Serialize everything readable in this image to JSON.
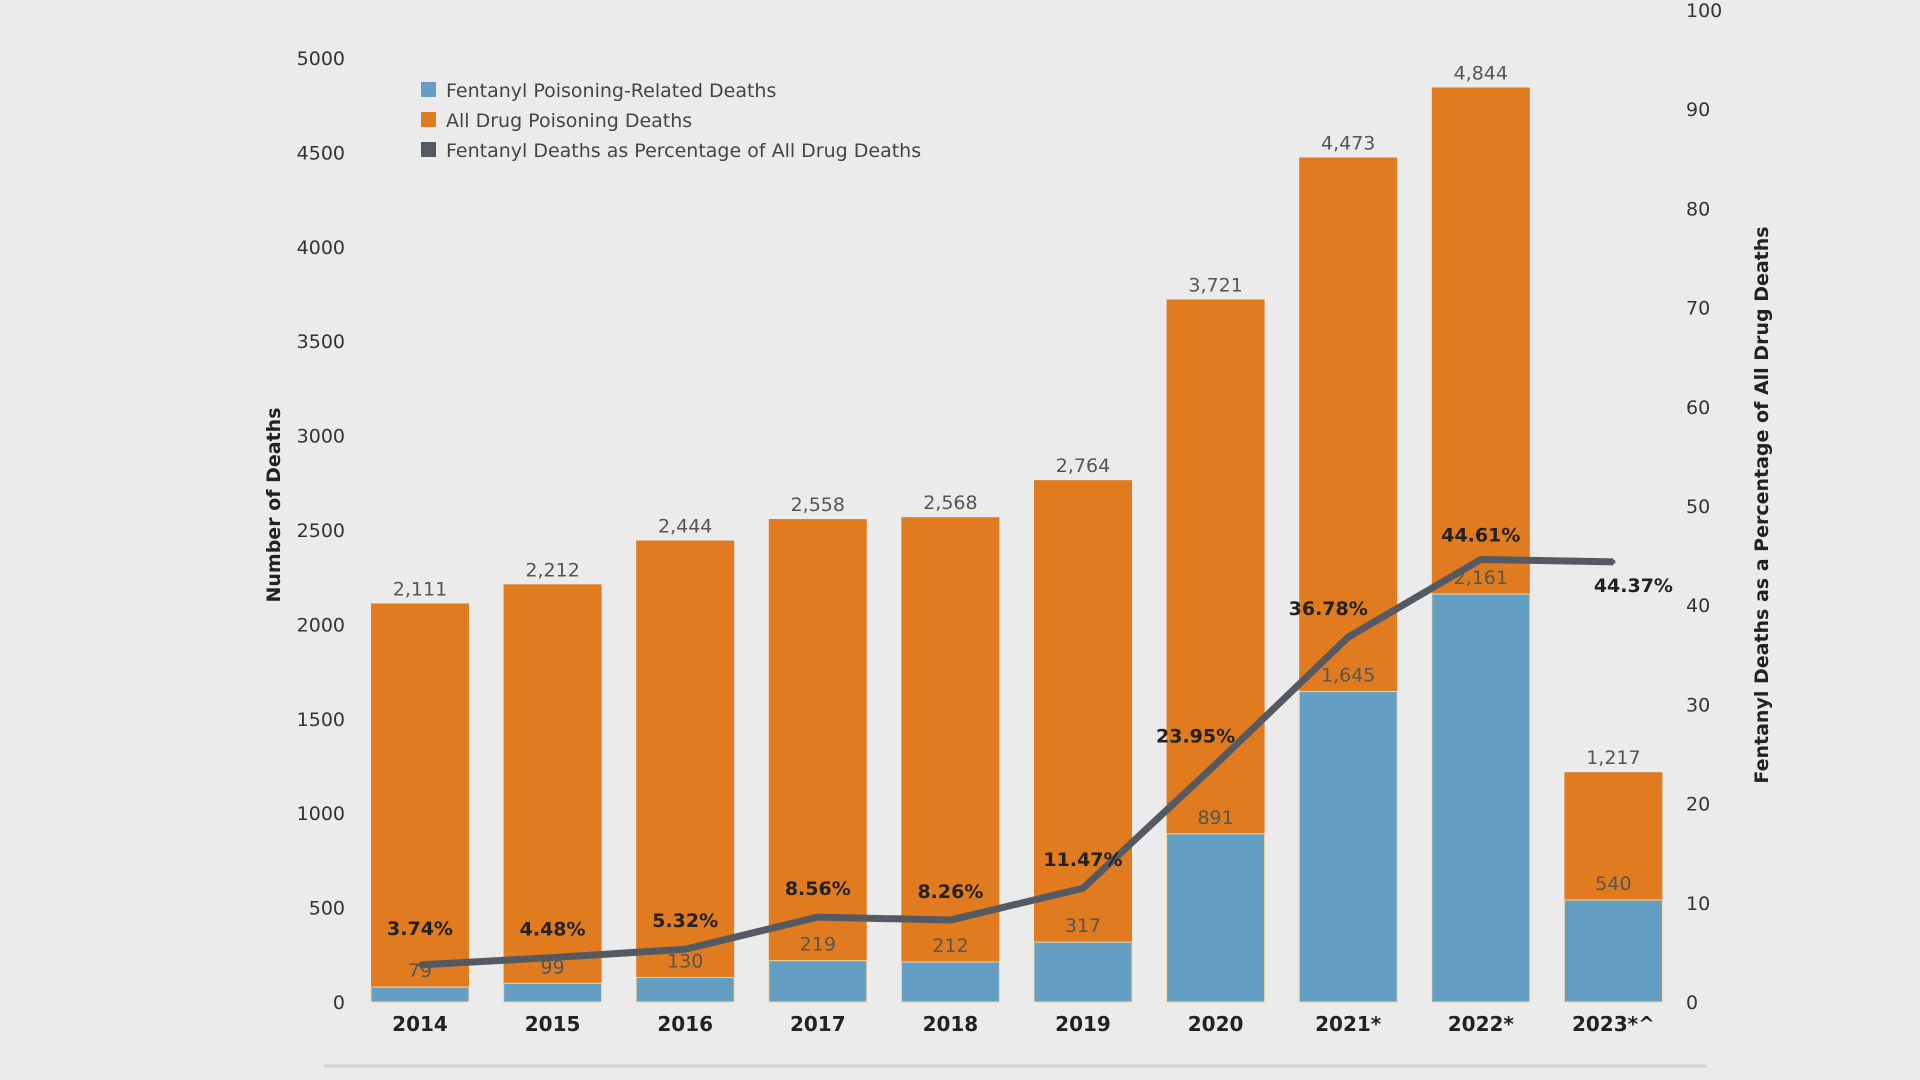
{
  "chart_data": {
    "type": "bar",
    "categories": [
      "2014",
      "2015",
      "2016",
      "2017",
      "2018",
      "2019",
      "2020",
      "2021*",
      "2022*",
      "2023*^"
    ],
    "series": [
      {
        "name": "All Drug Poisoning Deaths",
        "type": "bar",
        "axis": "left",
        "color": "#e07b20",
        "values": [
          2111,
          2212,
          2444,
          2558,
          2568,
          2764,
          3721,
          4473,
          4844,
          1217
        ],
        "labels": [
          "2,111",
          "2,212",
          "2,444",
          "2,558",
          "2,568",
          "2,764",
          "3,721",
          "4,473",
          "4,844",
          "1,217"
        ]
      },
      {
        "name": "Fentanyl Poisoning-Related Deaths",
        "type": "bar",
        "axis": "left",
        "color": "#649fc3",
        "values": [
          79,
          99,
          130,
          219,
          212,
          317,
          891,
          1645,
          2161,
          540
        ],
        "labels": [
          "79",
          "99",
          "130",
          "219",
          "212",
          "317",
          "891",
          "1,645",
          "2,161",
          "540"
        ]
      },
      {
        "name": "Fentanyl Deaths as Percentage of All Drug Deaths",
        "type": "line",
        "axis": "right",
        "color": "#555a62",
        "values": [
          3.74,
          4.48,
          5.32,
          8.56,
          8.26,
          11.47,
          23.95,
          36.78,
          44.61,
          44.37
        ],
        "labels": [
          "3.74%",
          "4.48%",
          "5.32%",
          "8.56%",
          "8.26%",
          "11.47%",
          "23.95%",
          "36.78%",
          "44.61%",
          "44.37%"
        ]
      }
    ],
    "ylabel": "Number of Deaths",
    "ylabel_right": "Fentanyl Deaths as a Percentage of All Drug Deaths",
    "ylim": [
      0,
      5000
    ],
    "yticks": [
      "0",
      "500",
      "1000",
      "1500",
      "2000",
      "2500",
      "3000",
      "3500",
      "4000",
      "4500",
      "5000"
    ],
    "ylim_right": [
      0,
      100
    ],
    "yticks_right": [
      "0",
      "10",
      "20",
      "30",
      "40",
      "50",
      "60",
      "70",
      "80",
      "90",
      "100"
    ],
    "grid": false,
    "legend": "top-left",
    "legend_order": [
      "Fentanyl Poisoning-Related Deaths",
      "All Drug Poisoning Deaths",
      "Fentanyl Deaths as Percentage of All Drug Deaths"
    ]
  }
}
